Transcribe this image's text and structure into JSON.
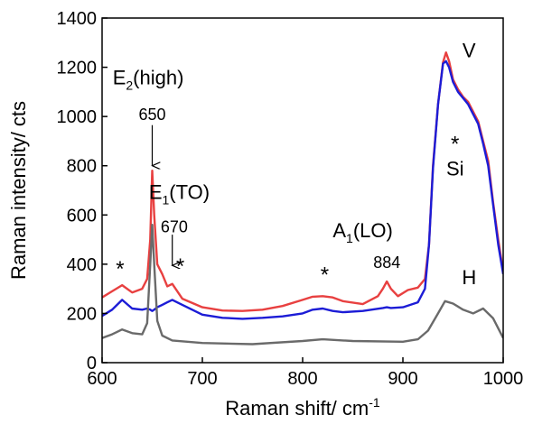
{
  "chart_data": {
    "type": "line",
    "title": "",
    "xlabel": "Raman shift/ cm",
    "xlabel_sup": "-1",
    "ylabel": "Raman intensity/ cts",
    "xlim": [
      600,
      1000
    ],
    "ylim": [
      0,
      1400
    ],
    "xticks": [
      600,
      700,
      800,
      900,
      1000
    ],
    "yticks": [
      0,
      200,
      400,
      600,
      800,
      1000,
      1200,
      1400
    ],
    "grid": false,
    "legend": "none",
    "series": [
      {
        "color": "#e84040",
        "x": [
          600,
          610,
          620,
          630,
          640,
          645,
          648,
          650,
          652,
          655,
          660,
          665,
          670,
          680,
          700,
          720,
          740,
          760,
          780,
          800,
          810,
          820,
          830,
          840,
          860,
          875,
          880,
          884,
          888,
          895,
          905,
          915,
          922,
          926,
          930,
          935,
          940,
          943,
          946,
          950,
          955,
          960,
          965,
          970,
          975,
          980,
          985,
          990,
          995,
          1000
        ],
        "y": [
          265,
          290,
          315,
          285,
          300,
          340,
          500,
          780,
          600,
          400,
          360,
          310,
          320,
          260,
          225,
          212,
          210,
          215,
          230,
          255,
          268,
          270,
          265,
          250,
          238,
          270,
          300,
          330,
          300,
          270,
          295,
          305,
          340,
          480,
          800,
          1050,
          1220,
          1260,
          1225,
          1150,
          1110,
          1080,
          1060,
          1020,
          980,
          900,
          820,
          650,
          500,
          370
        ]
      },
      {
        "color": "#1c1cd6",
        "x": [
          600,
          610,
          620,
          630,
          640,
          645,
          648,
          650,
          652,
          655,
          660,
          665,
          670,
          680,
          700,
          720,
          740,
          760,
          780,
          800,
          810,
          820,
          830,
          840,
          860,
          880,
          884,
          888,
          900,
          915,
          922,
          926,
          930,
          935,
          940,
          943,
          946,
          950,
          955,
          960,
          965,
          970,
          975,
          980,
          985,
          990,
          995,
          1000
        ],
        "y": [
          190,
          215,
          255,
          220,
          215,
          220,
          215,
          210,
          215,
          225,
          235,
          245,
          255,
          235,
          195,
          182,
          178,
          182,
          188,
          200,
          215,
          220,
          210,
          205,
          210,
          222,
          225,
          222,
          225,
          245,
          300,
          480,
          790,
          1050,
          1215,
          1225,
          1200,
          1140,
          1100,
          1075,
          1050,
          1010,
          970,
          890,
          800,
          640,
          480,
          360
        ]
      },
      {
        "color": "#6a6a6a",
        "x": [
          600,
          610,
          620,
          630,
          640,
          645,
          648,
          650,
          652,
          655,
          660,
          670,
          700,
          750,
          800,
          820,
          850,
          900,
          915,
          925,
          935,
          942,
          950,
          960,
          970,
          980,
          990,
          1000
        ],
        "y": [
          100,
          115,
          135,
          120,
          115,
          160,
          400,
          560,
          400,
          170,
          110,
          90,
          80,
          75,
          88,
          95,
          88,
          85,
          95,
          130,
          200,
          250,
          240,
          215,
          200,
          220,
          180,
          100
        ]
      }
    ],
    "annotations": [
      {
        "main": "E",
        "sub": "2",
        "tail": "(high)",
        "at": [
          646,
          1130
        ],
        "size": 22
      },
      {
        "main": "650",
        "at": [
          650,
          985
        ],
        "size": 18
      },
      {
        "main": "E",
        "sub": "1",
        "tail": "(TO)",
        "at": [
          677,
          665
        ],
        "size": 22
      },
      {
        "main": "670",
        "at": [
          672,
          530
        ],
        "size": 18
      },
      {
        "main": "A",
        "sub": "1",
        "tail": "(LO)",
        "at": [
          860,
          510
        ],
        "size": 22
      },
      {
        "main": "884",
        "at": [
          884,
          385
        ],
        "size": 18
      },
      {
        "main": "*",
        "at": [
          618,
          352
        ],
        "size": 24
      },
      {
        "main": "*",
        "at": [
          678,
          363
        ],
        "size": 24
      },
      {
        "main": "*",
        "at": [
          822,
          328
        ],
        "size": 24
      },
      {
        "main": "*",
        "at": [
          952,
          860
        ],
        "size": 24
      },
      {
        "main": "Si",
        "at": [
          952,
          760
        ],
        "size": 22
      },
      {
        "main": "V",
        "at": [
          966,
          1240
        ],
        "size": 22
      },
      {
        "main": "H",
        "at": [
          966,
          318
        ],
        "size": 22
      }
    ],
    "arrows": [
      {
        "from": [
          650,
          965
        ],
        "to": [
          650,
          800
        ]
      },
      {
        "from": [
          670,
          520
        ],
        "to": [
          670,
          395
        ]
      }
    ]
  }
}
